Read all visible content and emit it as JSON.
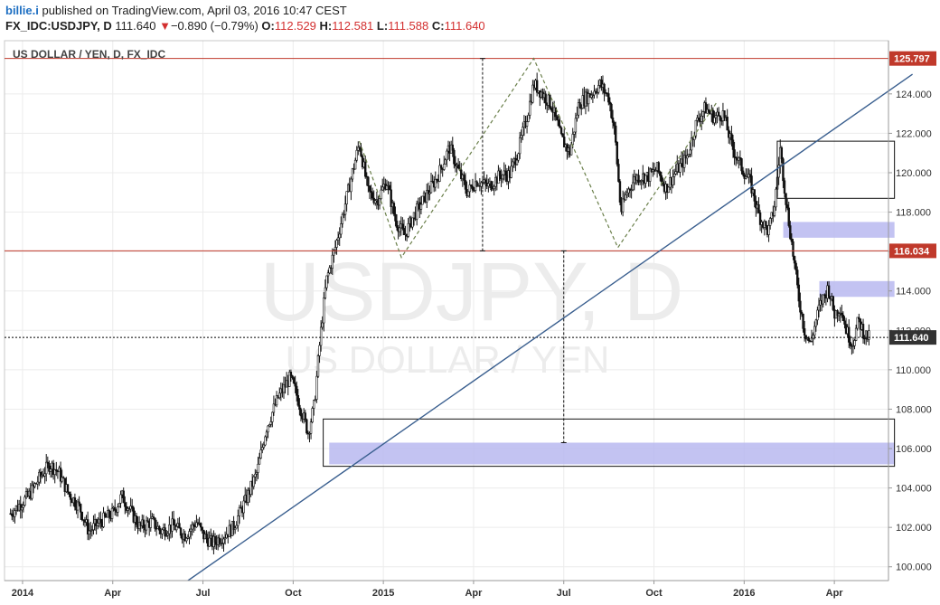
{
  "header": {
    "author": "billie.i",
    "published": "published on TradingView.com, April 03, 2016 10:47 CEST",
    "symbol": "FX_IDC:USDJPY, D",
    "last": "111.640",
    "change": "−0.890 (−0.79%)",
    "o_label": "O:",
    "o": "112.529",
    "h_label": "H:",
    "h": "112.581",
    "l_label": "L:",
    "l": "111.588",
    "c_label": "C:",
    "c": "111.640"
  },
  "chart_data": {
    "type": "candlestick",
    "title": "US DOLLAR / YEN, D, FX_IDC",
    "watermark_symbol": "USDJPY, D",
    "watermark_name": "US DOLLAR / YEN",
    "ylim": [
      99.3,
      126.7
    ],
    "yticks": [
      "100.000",
      "102.000",
      "104.000",
      "106.000",
      "108.000",
      "110.000",
      "112.000",
      "114.000",
      "116.000",
      "118.000",
      "120.000",
      "122.000",
      "124.000"
    ],
    "xticks": [
      "2014",
      "Apr",
      "Jul",
      "Oct",
      "2015",
      "Apr",
      "Jul",
      "Oct",
      "2016",
      "Apr"
    ],
    "xtick_pos": [
      0,
      3,
      6,
      9,
      12,
      15,
      18,
      21,
      24,
      27
    ],
    "xlim": [
      -0.6,
      28.8
    ],
    "price_labels": [
      {
        "value": 125.797,
        "text": "125.797",
        "color": "#c0392b"
      },
      {
        "value": 116.034,
        "text": "116.034",
        "color": "#c0392b"
      },
      {
        "value": 111.64,
        "text": "111.640",
        "color": "#333333"
      }
    ],
    "price_path": [
      [
        -0.4,
        102.7
      ],
      [
        0.2,
        103.6
      ],
      [
        0.6,
        104.6
      ],
      [
        0.9,
        105.2
      ],
      [
        1.2,
        104.8
      ],
      [
        1.5,
        103.8
      ],
      [
        1.9,
        103.0
      ],
      [
        2.2,
        101.8
      ],
      [
        2.6,
        102.3
      ],
      [
        3.0,
        102.7
      ],
      [
        3.3,
        103.6
      ],
      [
        3.6,
        102.8
      ],
      [
        3.9,
        102.0
      ],
      [
        4.3,
        102.3
      ],
      [
        4.6,
        101.8
      ],
      [
        5.0,
        102.1
      ],
      [
        5.4,
        101.6
      ],
      [
        5.8,
        102.3
      ],
      [
        6.0,
        101.6
      ],
      [
        6.3,
        101.2
      ],
      [
        6.7,
        101.6
      ],
      [
        7.0,
        102.0
      ],
      [
        7.4,
        103.3
      ],
      [
        7.8,
        104.8
      ],
      [
        8.1,
        107.0
      ],
      [
        8.5,
        108.6
      ],
      [
        8.9,
        109.6
      ],
      [
        9.1,
        108.8
      ],
      [
        9.3,
        107.8
      ],
      [
        9.5,
        106.8
      ],
      [
        9.7,
        108.2
      ],
      [
        9.9,
        111.6
      ],
      [
        10.1,
        114.5
      ],
      [
        10.4,
        116.2
      ],
      [
        10.7,
        118.2
      ],
      [
        11.0,
        120.2
      ],
      [
        11.2,
        121.5
      ],
      [
        11.5,
        119.0
      ],
      [
        11.8,
        118.6
      ],
      [
        12.1,
        119.6
      ],
      [
        12.4,
        117.6
      ],
      [
        12.7,
        116.8
      ],
      [
        13.0,
        117.8
      ],
      [
        13.4,
        118.8
      ],
      [
        13.8,
        119.8
      ],
      [
        14.2,
        121.3
      ],
      [
        14.5,
        120.1
      ],
      [
        14.8,
        119.0
      ],
      [
        15.1,
        119.6
      ],
      [
        15.5,
        119.3
      ],
      [
        15.9,
        119.9
      ],
      [
        16.2,
        119.9
      ],
      [
        16.5,
        121.2
      ],
      [
        16.8,
        123.0
      ],
      [
        17.0,
        124.5
      ],
      [
        17.3,
        124.0
      ],
      [
        17.6,
        123.4
      ],
      [
        17.9,
        121.8
      ],
      [
        18.2,
        121.0
      ],
      [
        18.5,
        123.5
      ],
      [
        18.9,
        124.0
      ],
      [
        19.2,
        124.5
      ],
      [
        19.5,
        123.8
      ],
      [
        19.7,
        122.0
      ],
      [
        19.9,
        118.0
      ],
      [
        20.1,
        119.0
      ],
      [
        20.4,
        119.8
      ],
      [
        20.8,
        119.8
      ],
      [
        21.1,
        120.2
      ],
      [
        21.4,
        119.2
      ],
      [
        21.7,
        120.0
      ],
      [
        22.1,
        120.8
      ],
      [
        22.4,
        122.5
      ],
      [
        22.7,
        123.3
      ],
      [
        23.0,
        122.8
      ],
      [
        23.3,
        123.0
      ],
      [
        23.6,
        121.3
      ],
      [
        23.9,
        120.3
      ],
      [
        24.2,
        119.5
      ],
      [
        24.5,
        117.8
      ],
      [
        24.8,
        117.0
      ],
      [
        25.0,
        118.2
      ],
      [
        25.2,
        121.2
      ],
      [
        25.4,
        118.5
      ],
      [
        25.6,
        116.2
      ],
      [
        25.8,
        113.8
      ],
      [
        26.0,
        112.0
      ],
      [
        26.2,
        111.3
      ],
      [
        26.5,
        113.2
      ],
      [
        26.8,
        114.2
      ],
      [
        27.0,
        112.8
      ],
      [
        27.2,
        113.2
      ],
      [
        27.4,
        112.0
      ],
      [
        27.6,
        111.3
      ],
      [
        27.8,
        112.5
      ],
      [
        28.0,
        111.8
      ],
      [
        28.15,
        111.64
      ]
    ],
    "lines": [
      {
        "kind": "horizontal",
        "value": 125.797,
        "color": "#c0392b"
      },
      {
        "kind": "horizontal",
        "value": 116.034,
        "color": "#c0392b"
      },
      {
        "kind": "horizontal",
        "value": 111.64,
        "color": "#000000",
        "dashed": true
      },
      {
        "kind": "trend",
        "points": [
          [
            5.5,
            99.3
          ],
          [
            29.6,
            125.0
          ]
        ],
        "color": "#3a5f8f"
      }
    ],
    "zigzag": [
      [
        11.2,
        121.6
      ],
      [
        12.6,
        115.7
      ],
      [
        17.0,
        125.797
      ],
      [
        19.8,
        116.2
      ],
      [
        23.1,
        123.6
      ]
    ],
    "measures": [
      {
        "x": 15.3,
        "from": 125.797,
        "to": 116.034
      },
      {
        "x": 18.0,
        "from": 116.034,
        "to": 106.3
      }
    ],
    "zones": [
      {
        "x0": 10.2,
        "x1": 29.0,
        "y0": 105.2,
        "y1": 106.3,
        "color": "#b8b8f0"
      },
      {
        "x0": 25.3,
        "x1": 29.0,
        "y0": 116.7,
        "y1": 117.5,
        "color": "#b8b8f0"
      },
      {
        "x0": 26.5,
        "x1": 29.0,
        "y0": 113.7,
        "y1": 114.5,
        "color": "#b8b8f0"
      }
    ],
    "boxes": [
      {
        "x0": 10.0,
        "x1": 29.0,
        "y0": 105.1,
        "y1": 107.5
      },
      {
        "x0": 25.1,
        "x1": 29.0,
        "y0": 118.7,
        "y1": 121.6
      }
    ]
  }
}
